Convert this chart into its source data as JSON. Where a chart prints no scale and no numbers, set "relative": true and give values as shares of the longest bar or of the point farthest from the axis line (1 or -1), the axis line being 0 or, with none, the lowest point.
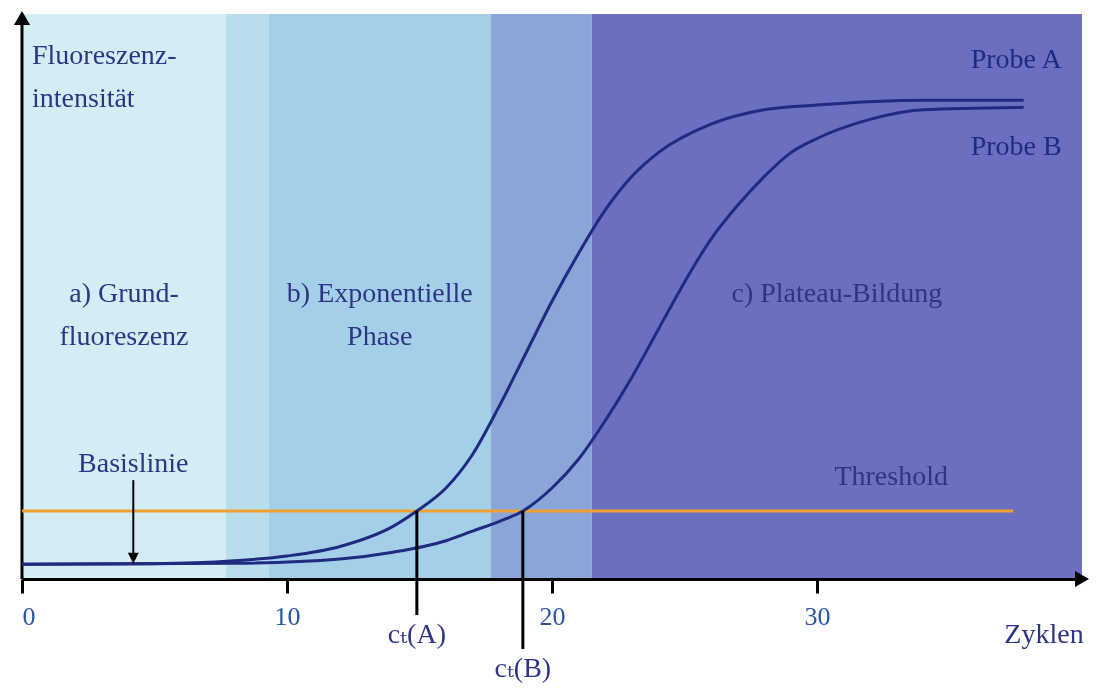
{
  "chart_data": {
    "type": "line",
    "relative": true,
    "xlabel": "Zyklen",
    "ylabel": "Fluoreszenz-\nintensität",
    "xlim": [
      0,
      40
    ],
    "xticks": [
      0,
      10,
      20,
      30
    ],
    "tick_labels": "x",
    "series": [
      {
        "name": "Probe A",
        "color": "#1f2a80",
        "x": [
          0,
          5,
          8,
          10,
          12,
          14,
          14.9,
          16,
          17,
          18,
          19,
          20,
          21,
          22,
          23,
          24,
          26,
          28,
          30,
          34,
          37.8
        ],
        "values": [
          0.031,
          0.032,
          0.038,
          0.048,
          0.068,
          0.11,
          0.142,
          0.19,
          0.26,
          0.36,
          0.47,
          0.58,
          0.68,
          0.77,
          0.84,
          0.89,
          0.95,
          0.98,
          0.99,
          1.0,
          1.0
        ]
      },
      {
        "name": "Probe B",
        "color": "#1f2a80",
        "x": [
          0,
          8,
          12,
          14,
          16,
          17,
          18,
          18.9,
          20,
          21,
          22,
          23,
          24,
          25,
          26,
          27,
          28,
          29,
          30,
          32,
          34,
          37.8
        ],
        "values": [
          0.031,
          0.033,
          0.042,
          0.056,
          0.08,
          0.1,
          0.12,
          0.142,
          0.19,
          0.25,
          0.33,
          0.42,
          0.52,
          0.62,
          0.71,
          0.78,
          0.84,
          0.89,
          0.92,
          0.96,
          0.98,
          0.985
        ]
      }
    ],
    "ref_lines": [
      {
        "axis": "y",
        "value": 0.142,
        "label": "Threshold",
        "color": "#f0a030"
      }
    ],
    "bands": [
      {
        "axis": "x",
        "from": 0,
        "to": 7.7,
        "label": "a) Grund-\nfluoreszenz",
        "color": "#d4edf5"
      },
      {
        "axis": "x",
        "from": 7.7,
        "to": 9.3,
        "color": "#b8deee"
      },
      {
        "axis": "x",
        "from": 9.3,
        "to": 17.7,
        "label": "b) Exponentielle\nPhase",
        "color": "#a3d0e8"
      },
      {
        "axis": "x",
        "from": 17.7,
        "to": 21.5,
        "color": "#8aa6d8"
      },
      {
        "axis": "x",
        "from": 21.5,
        "to": 40,
        "label": "c) Plateau-Bildung",
        "color": "#6b6fc0"
      }
    ],
    "annotations": [
      {
        "text": "Basislinie",
        "x": 4.2,
        "y": 0.031
      },
      {
        "text": "cₜ(A)",
        "x": 14.9,
        "y": 0.142
      },
      {
        "text": "cₜ(B)",
        "x": 18.9,
        "y": 0.142
      }
    ],
    "line_style": "solid",
    "marker": "none",
    "grid": false
  }
}
